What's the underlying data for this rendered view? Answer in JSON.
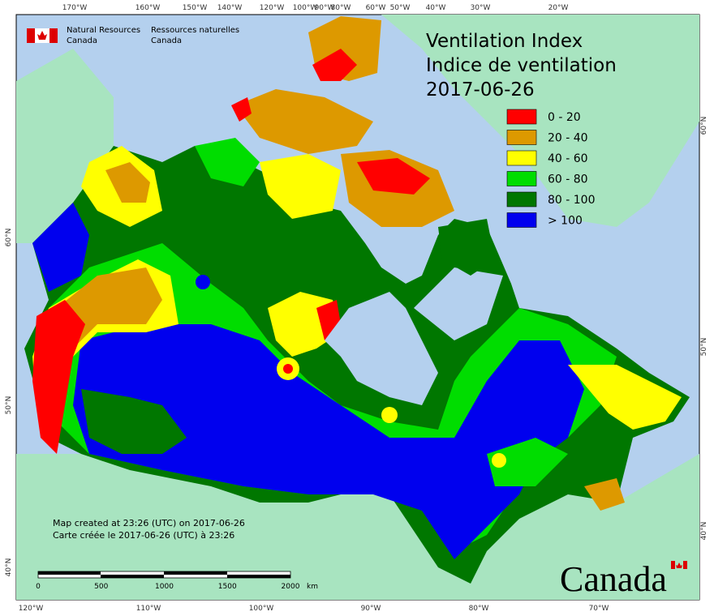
{
  "agency": {
    "en": [
      "Natural Resources",
      "Canada"
    ],
    "fr": [
      "Ressources naturelles",
      "Canada"
    ]
  },
  "title": {
    "en": "Ventilation Index",
    "fr": "Indice de ventilation",
    "date": "2017-06-26"
  },
  "legend": [
    {
      "label": "0 - 20",
      "color": "#ff0000"
    },
    {
      "label": "20 - 40",
      "color": "#dd9900"
    },
    {
      "label": "40 - 60",
      "color": "#ffff00"
    },
    {
      "label": "60 - 80",
      "color": "#00dd00"
    },
    {
      "label": "80 - 100",
      "color": "#007700"
    },
    {
      "label": "> 100",
      "color": "#0000ee"
    }
  ],
  "credits": [
    "Map created at 23:26 (UTC) on 2017-06-26",
    "Carte créée le 2017-06-26 (UTC) à 23:26"
  ],
  "scale_bar": {
    "labels": [
      0,
      500,
      1000,
      1500,
      2000
    ],
    "unit": "km"
  },
  "graticule": {
    "top": [
      "170°W",
      "160°W",
      "150°W",
      "140°W",
      "120°W",
      "100°W",
      "90°W",
      "80°W",
      "60°W",
      "50°W",
      "40°W",
      "30°W",
      "20°W"
    ],
    "bottom": [
      "120°W",
      "110°W",
      "100°W",
      "90°W",
      "80°W",
      "70°W"
    ],
    "left": [
      "60°N",
      "50°N",
      "40°N"
    ],
    "right": [
      "60°N",
      "50°N",
      "40°N"
    ]
  },
  "wordmark": "Canada"
}
